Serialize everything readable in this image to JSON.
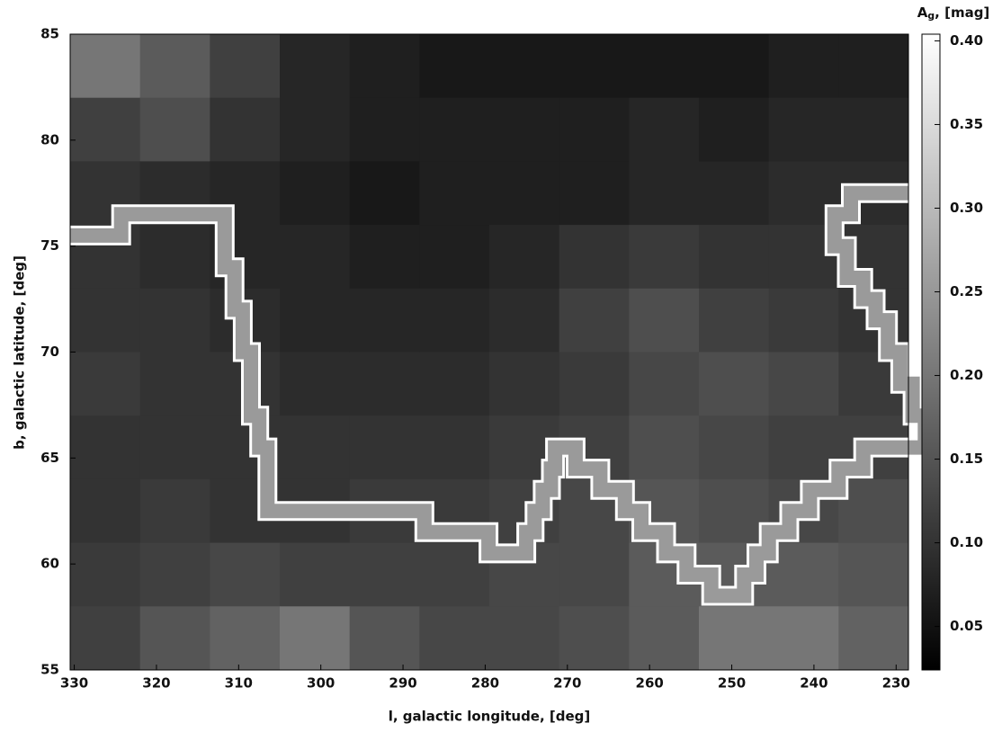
{
  "chart_data": {
    "type": "heatmap",
    "xlabel": "l, galactic longitude, [deg]",
    "ylabel": "b, galactic latitude, [deg]",
    "colorbar_label": {
      "main": "A",
      "sub": "g",
      "rest": ", [mag]"
    },
    "xlim": [
      330.5,
      228.5
    ],
    "ylim": [
      55,
      85
    ],
    "xticks": [
      330,
      320,
      310,
      300,
      290,
      280,
      270,
      260,
      250,
      240,
      230
    ],
    "yticks": [
      55,
      60,
      65,
      70,
      75,
      80,
      85
    ],
    "clim": [
      0.024,
      0.404
    ],
    "cticks": [
      0.05,
      {
        "value": 0.1,
        "label": "0.10"
      },
      0.15,
      {
        "value": 0.2,
        "label": "0.20"
      },
      0.25,
      {
        "value": 0.3,
        "label": "0.30"
      },
      0.35,
      {
        "value": 0.4,
        "label": "0.40"
      }
    ],
    "lon_edges": [
      330.5,
      322,
      313.5,
      305,
      296.5,
      288,
      279.5,
      271,
      262.5,
      254,
      245.5,
      237,
      228.5
    ],
    "lat_edges": [
      85,
      82,
      79,
      76,
      73,
      70,
      67,
      64,
      61,
      58,
      55
    ],
    "z": [
      [
        0.2,
        0.16,
        0.12,
        0.08,
        0.07,
        0.06,
        0.06,
        0.06,
        0.06,
        0.06,
        0.07,
        0.07
      ],
      [
        0.12,
        0.14,
        0.1,
        0.08,
        0.07,
        0.07,
        0.07,
        0.07,
        0.08,
        0.07,
        0.08,
        0.08
      ],
      [
        0.1,
        0.09,
        0.08,
        0.07,
        0.06,
        0.07,
        0.07,
        0.07,
        0.08,
        0.08,
        0.09,
        0.09
      ],
      [
        0.1,
        0.09,
        0.08,
        0.08,
        0.07,
        0.07,
        0.08,
        0.1,
        0.11,
        0.1,
        0.1,
        0.1
      ],
      [
        0.1,
        0.1,
        0.09,
        0.08,
        0.08,
        0.08,
        0.09,
        0.12,
        0.14,
        0.12,
        0.11,
        0.1
      ],
      [
        0.11,
        0.1,
        0.1,
        0.09,
        0.09,
        0.09,
        0.1,
        0.11,
        0.13,
        0.14,
        0.13,
        0.11
      ],
      [
        0.1,
        0.1,
        0.1,
        0.1,
        0.1,
        0.1,
        0.11,
        0.12,
        0.14,
        0.13,
        0.12,
        0.12
      ],
      [
        0.1,
        0.11,
        0.1,
        0.1,
        0.11,
        0.11,
        0.12,
        0.13,
        0.15,
        0.14,
        0.13,
        0.14
      ],
      [
        0.11,
        0.12,
        0.13,
        0.12,
        0.12,
        0.12,
        0.13,
        0.13,
        0.16,
        0.16,
        0.16,
        0.15
      ],
      [
        0.12,
        0.15,
        0.17,
        0.2,
        0.15,
        0.13,
        0.13,
        0.14,
        0.16,
        0.2,
        0.2,
        0.17
      ]
    ],
    "contour": {
      "color": "#9a9a9a",
      "lon": [
        330.5,
        324.3,
        324.3,
        311.7,
        311.7,
        310.5,
        310.5,
        309.5,
        309.5,
        308.5,
        308.5,
        307.5,
        307.5,
        306.5,
        306.5,
        287.4,
        287.4,
        279.6,
        279.6,
        275,
        275,
        274,
        274,
        273,
        273,
        272,
        272,
        271.5,
        271.5,
        269,
        269,
        266,
        266,
        263,
        263,
        261,
        261,
        258,
        258,
        255.5,
        255.5,
        252.5,
        252.5,
        248.5,
        248.5,
        247,
        247,
        245.5,
        245.5,
        243,
        243,
        240.5,
        240.5,
        237,
        237,
        234,
        234,
        226.5,
        226.5,
        228,
        228,
        229.5,
        229.5,
        231,
        231,
        232.5,
        232.5,
        234,
        234,
        236,
        236,
        237.5,
        237.5,
        235.5,
        235.5,
        228.5
      ],
      "lat": [
        75.5,
        75.5,
        76.5,
        76.5,
        74,
        74,
        72,
        72,
        70,
        70,
        67,
        67,
        65.5,
        65.5,
        62.5,
        62.5,
        61.5,
        61.5,
        60.5,
        60.5,
        61.5,
        61.5,
        62.5,
        62.5,
        63.5,
        63.5,
        64.5,
        64.5,
        65.5,
        65.5,
        64.5,
        64.5,
        63.5,
        63.5,
        62.5,
        62.5,
        61.5,
        61.5,
        60.5,
        60.5,
        59.5,
        59.5,
        58.5,
        58.5,
        59.5,
        59.5,
        60.5,
        60.5,
        61.5,
        61.5,
        62.5,
        62.5,
        63.5,
        63.5,
        64.5,
        64.5,
        65.5,
        65.5,
        67,
        67,
        68.5,
        68.5,
        70,
        70,
        71.5,
        71.5,
        72.5,
        72.5,
        73.5,
        73.5,
        75,
        75,
        76.5,
        76.5,
        77.5,
        77.5
      ]
    }
  }
}
